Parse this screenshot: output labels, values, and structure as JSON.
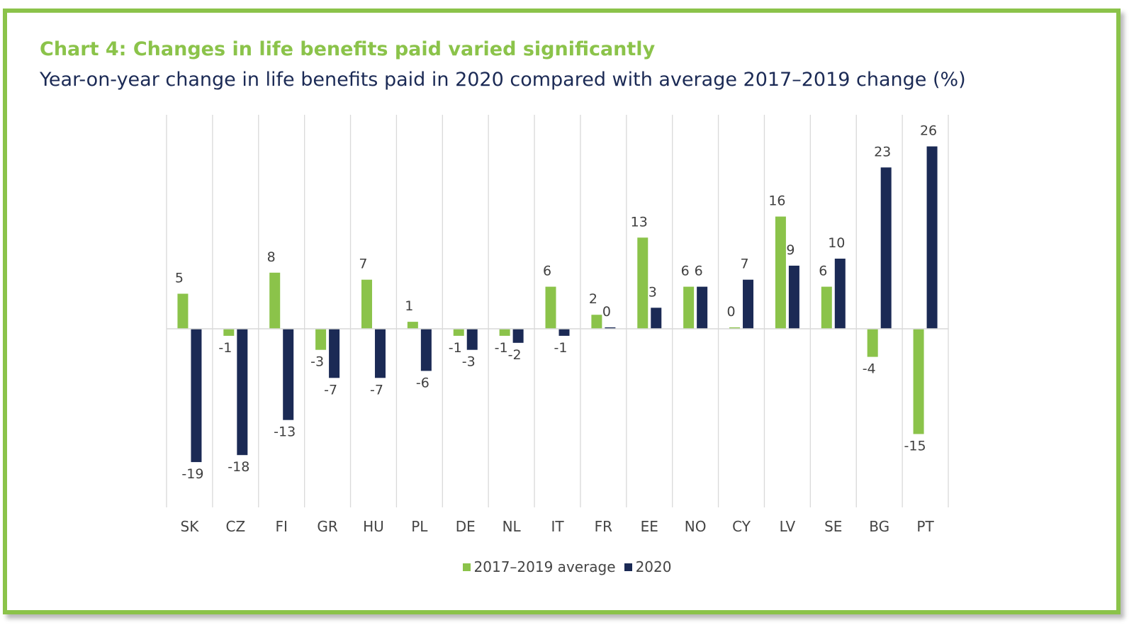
{
  "frame_color": "#8bc34a",
  "title": "Chart 4: Changes in life benefits paid varied significantly",
  "subtitle": "Year-on-year change in life benefits paid in 2020 compared with average 2017–2019 change (%)",
  "chart_data": {
    "type": "bar",
    "categories": [
      "SK",
      "CZ",
      "FI",
      "GR",
      "HU",
      "PL",
      "DE",
      "NL",
      "IT",
      "FR",
      "EE",
      "NO",
      "CY",
      "LV",
      "SE",
      "BG",
      "PT"
    ],
    "series": [
      {
        "name": "2017–2019 average",
        "color": "#8bc34a",
        "values": [
          5,
          -1,
          8,
          -3,
          7,
          1,
          -1,
          -1,
          6,
          2,
          13,
          6,
          0,
          16,
          6,
          -4,
          -15
        ],
        "labels": [
          "5",
          "-1",
          "8",
          "-3",
          "7",
          "1",
          "-1",
          "-1",
          "6",
          "2",
          "13",
          "6",
          "0",
          "16",
          "6",
          "-4",
          "-15"
        ]
      },
      {
        "name": "2020",
        "color": "#1b2a55",
        "values": [
          -19,
          -18,
          -13,
          -7,
          -7,
          -6,
          -3,
          -2,
          -1,
          0,
          3,
          6,
          7,
          9,
          10,
          23,
          26
        ],
        "labels": [
          "-19",
          "-18",
          "-13",
          "-7",
          "-7",
          "-6",
          "-3",
          "-2",
          "-1",
          "0",
          "3",
          "6",
          "7",
          "9",
          "10",
          "23",
          "26"
        ]
      }
    ],
    "xlabel": "",
    "ylabel": "",
    "ylim": [
      -25,
      30
    ],
    "grid": "vertical category separators",
    "legend_position": "bottom-center"
  }
}
